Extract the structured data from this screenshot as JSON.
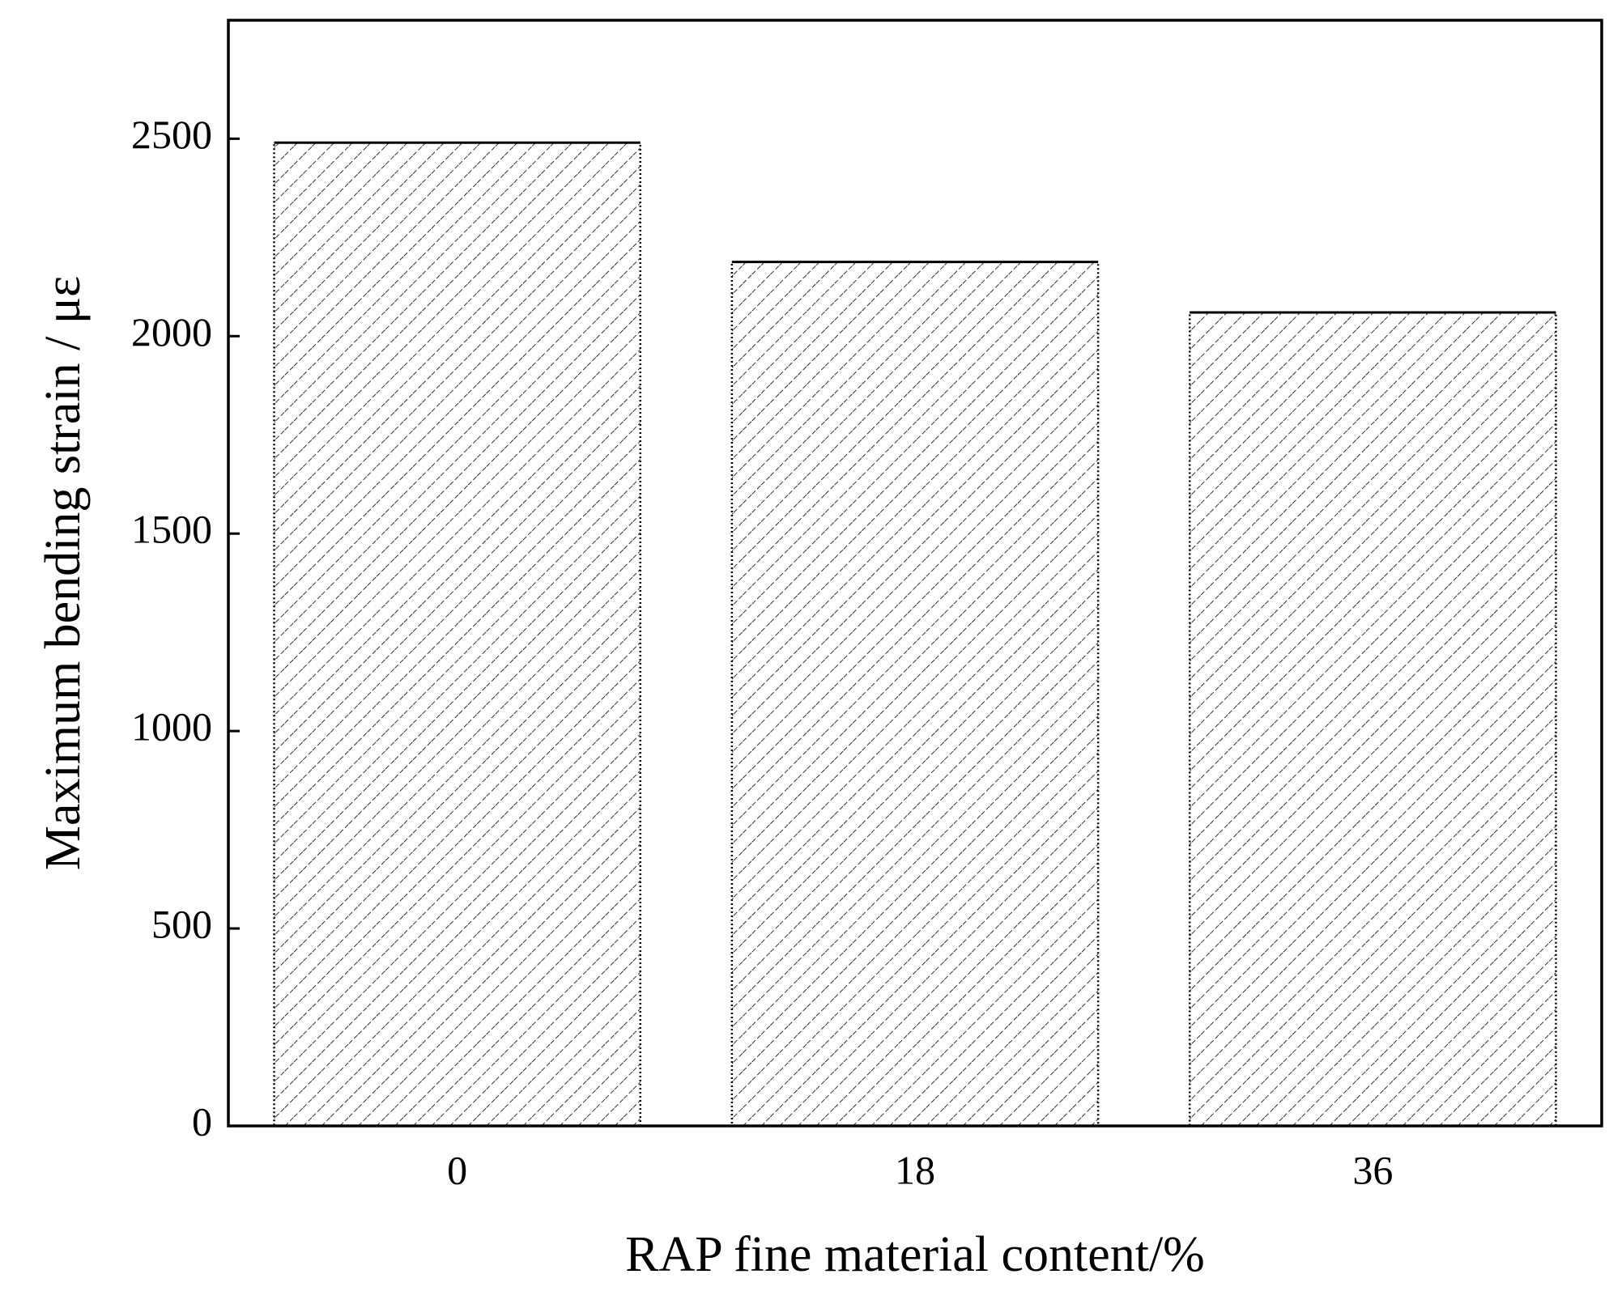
{
  "chart_data": {
    "type": "bar",
    "x_label": "RAP fine material content/%",
    "y_label": "Maximum bending strain / με",
    "categories": [
      "0",
      "18",
      "36"
    ],
    "values": [
      2490,
      2188,
      2060
    ],
    "color": "#000000",
    "ylim": [
      0,
      2800
    ],
    "yticks": [
      0,
      500,
      1000,
      1500,
      2000,
      2500
    ]
  }
}
